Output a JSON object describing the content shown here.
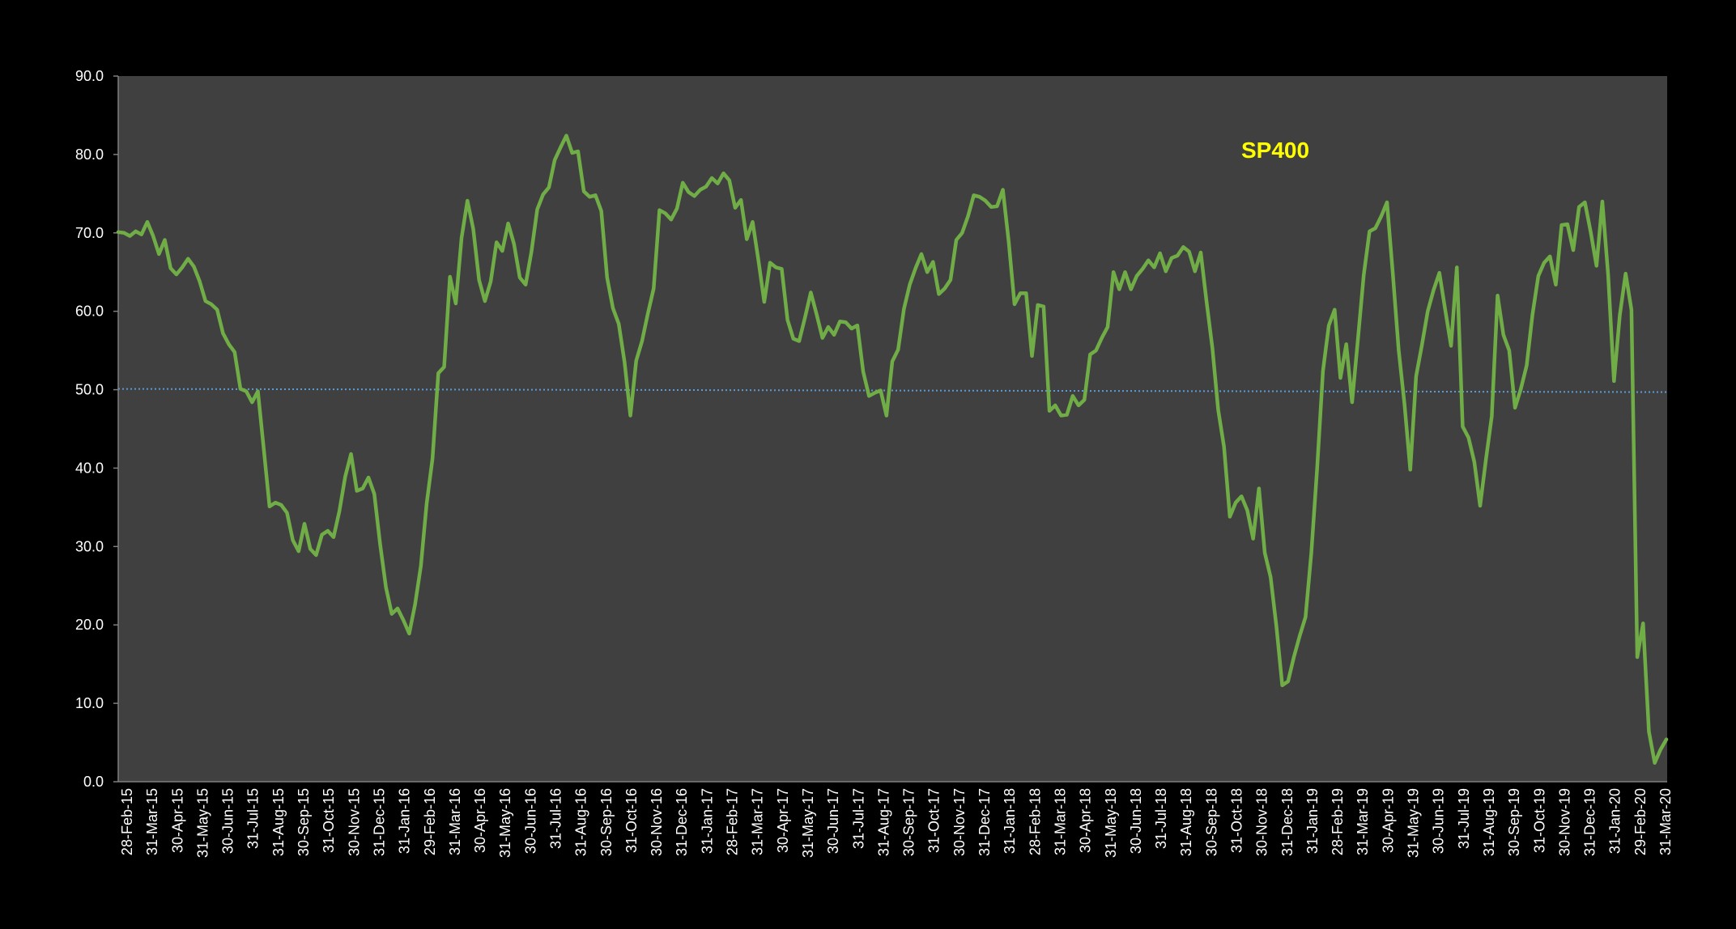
{
  "chart_data": {
    "type": "line",
    "title": "SP400",
    "xlabel": "",
    "ylabel": "",
    "ylim": [
      0,
      90
    ],
    "ytick_labels": [
      "0.0",
      "10.0",
      "20.0",
      "30.0",
      "40.0",
      "50.0",
      "60.0",
      "70.0",
      "80.0",
      "90.0"
    ],
    "xtick_labels": [
      "28-Feb-15",
      "31-Mar-15",
      "30-Apr-15",
      "31-May-15",
      "30-Jun-15",
      "31-Jul-15",
      "31-Aug-15",
      "30-Sep-15",
      "31-Oct-15",
      "30-Nov-15",
      "31-Dec-15",
      "31-Jan-16",
      "29-Feb-16",
      "31-Mar-16",
      "30-Apr-16",
      "31-May-16",
      "30-Jun-16",
      "31-Jul-16",
      "31-Aug-16",
      "30-Sep-16",
      "31-Oct-16",
      "30-Nov-16",
      "31-Dec-16",
      "31-Jan-17",
      "28-Feb-17",
      "31-Mar-17",
      "30-Apr-17",
      "31-May-17",
      "30-Jun-17",
      "31-Jul-17",
      "31-Aug-17",
      "30-Sep-17",
      "31-Oct-17",
      "30-Nov-17",
      "31-Dec-17",
      "31-Jan-18",
      "28-Feb-18",
      "31-Mar-18",
      "30-Apr-18",
      "31-May-18",
      "30-Jun-18",
      "31-Jul-18",
      "31-Aug-18",
      "30-Sep-18",
      "31-Oct-18",
      "30-Nov-18",
      "31-Dec-18",
      "31-Jan-19",
      "28-Feb-19",
      "31-Mar-19",
      "30-Apr-19",
      "31-May-19",
      "30-Jun-19",
      "31-Jul-19",
      "31-Aug-19",
      "30-Sep-19",
      "31-Oct-19",
      "30-Nov-19",
      "31-Dec-19",
      "31-Jan-20",
      "29-Feb-20",
      "31-Mar-20"
    ],
    "x_start_label": "28-Feb-15",
    "x_end_label": "31-Mar-20",
    "series": [
      {
        "color": "#70ad47",
        "values": [
          70.1,
          70.0,
          69.6,
          70.2,
          69.8,
          71.4,
          69.6,
          67.3,
          69.1,
          65.5,
          64.7,
          65.6,
          66.7,
          65.7,
          63.8,
          61.3,
          60.9,
          60.2,
          57.2,
          55.8,
          54.8,
          50.1,
          49.8,
          48.4,
          49.8,
          42.5,
          35.1,
          35.6,
          35.3,
          34.3,
          30.8,
          29.4,
          32.9,
          29.7,
          28.9,
          31.5,
          32.0,
          31.2,
          34.5,
          38.9,
          41.8,
          37.1,
          37.4,
          38.8,
          36.7,
          30.3,
          24.8,
          21.4,
          22.1,
          20.6,
          18.9,
          22.6,
          27.5,
          35.5,
          41.2,
          52.1,
          52.9,
          64.4,
          61.0,
          69.4,
          74.1,
          70.5,
          64.0,
          61.3,
          63.8,
          68.8,
          67.7,
          71.2,
          68.6,
          64.3,
          63.4,
          67.6,
          73.0,
          74.9,
          75.8,
          79.3,
          80.9,
          82.4,
          80.2,
          80.4,
          75.3,
          74.6,
          74.8,
          72.8,
          64.3,
          60.4,
          58.4,
          53.5,
          46.7,
          53.7,
          56.2,
          59.7,
          62.9,
          72.9,
          72.5,
          71.7,
          73.1,
          76.4,
          75.2,
          74.7,
          75.5,
          75.9,
          77.0,
          76.3,
          77.6,
          76.7,
          73.2,
          74.2,
          69.2,
          71.4,
          66.5,
          61.2,
          66.2,
          65.6,
          65.4,
          58.9,
          56.5,
          56.2,
          59.2,
          62.4,
          59.6,
          56.6,
          58.0,
          57.0,
          58.7,
          58.6,
          57.8,
          58.2,
          52.3,
          49.2,
          49.6,
          49.9,
          46.7,
          53.6,
          55.1,
          60.3,
          63.4,
          65.5,
          67.3,
          65.0,
          66.3,
          62.2,
          62.9,
          64.0,
          69.1,
          70.0,
          72.1,
          74.8,
          74.6,
          74.1,
          73.3,
          73.4,
          75.5,
          68.9,
          60.9,
          62.3,
          62.3,
          54.3,
          60.8,
          60.6,
          47.3,
          48.0,
          46.7,
          46.8,
          49.2,
          48.0,
          48.7,
          54.5,
          55.0,
          56.6,
          58.0,
          65.0,
          62.8,
          65.0,
          62.8,
          64.5,
          65.4,
          66.5,
          65.6,
          67.4,
          65.1,
          66.8,
          67.1,
          68.2,
          67.6,
          65.1,
          67.5,
          61.2,
          55.3,
          47.4,
          42.7,
          33.8,
          35.6,
          36.4,
          34.6,
          31.0,
          37.4,
          29.2,
          26.1,
          19.8,
          12.3,
          12.8,
          15.9,
          18.6,
          21.0,
          29.2,
          40.0,
          52.4,
          58.2,
          60.2,
          51.5,
          55.8,
          48.4,
          56.4,
          64.6,
          70.2,
          70.6,
          72.1,
          73.9,
          64.8,
          55.1,
          48.2,
          39.8,
          51.7,
          55.7,
          60.0,
          62.7,
          64.9,
          60.2,
          55.6,
          65.6,
          45.3,
          43.9,
          40.8,
          35.2,
          41.1,
          46.6,
          62.0,
          57.0,
          55.0,
          47.7,
          50.1,
          53.1,
          59.6,
          64.5,
          66.2,
          67.0,
          63.4,
          71.0,
          71.1,
          67.8,
          73.3,
          73.9,
          70.1,
          65.8,
          74.0,
          64.6,
          51.1,
          59.5,
          64.8,
          60.2,
          15.9,
          20.2,
          6.4,
          2.4,
          4.1,
          5.4
        ]
      }
    ],
    "reference_line": {
      "value": 50.0,
      "color": "#5b9bd5",
      "style": "dotted"
    },
    "plot_background": "#404040",
    "page_background": "#000000",
    "title_color": "#ffff00",
    "legend": "none",
    "grid": false
  }
}
